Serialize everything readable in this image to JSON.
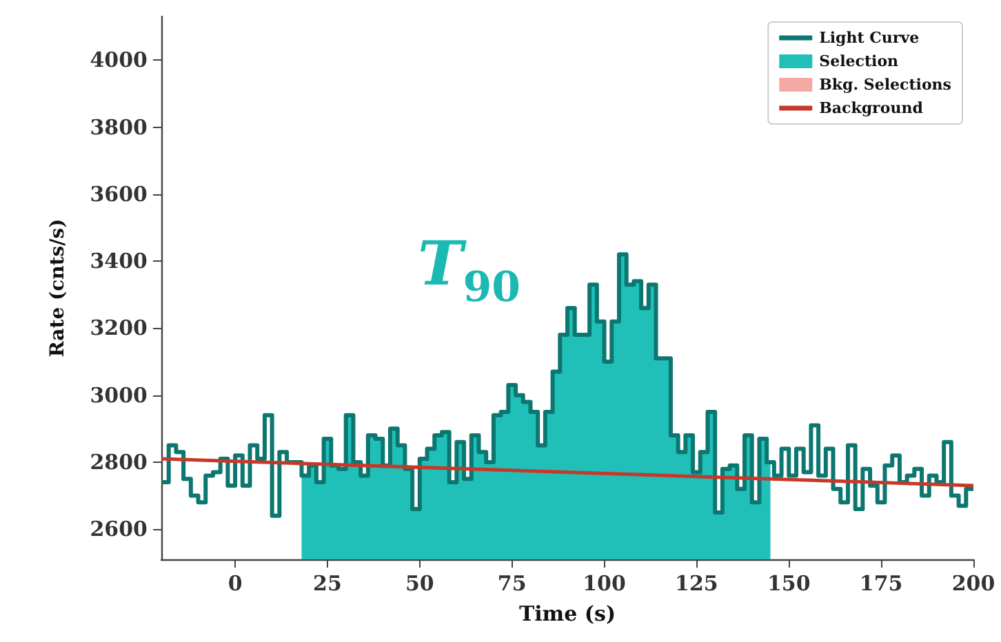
{
  "chart_data": {
    "type": "step",
    "xlabel": "Time (s)",
    "ylabel": "Rate (cnts/s)",
    "xlim": [
      -20,
      200
    ],
    "ylim": [
      2510,
      4130
    ],
    "xticks": [
      0,
      25,
      50,
      75,
      100,
      125,
      150,
      175,
      200
    ],
    "yticks": [
      2600,
      2800,
      3000,
      3200,
      3400,
      3600,
      3800,
      4000
    ],
    "legend": "top right",
    "annotations": [
      "T$_{90}$"
    ],
    "series": [
      {
        "name": "Light Curve",
        "color": "#0c7670",
        "x": [
          -20,
          -18,
          -16,
          -14,
          -12,
          -10,
          -8,
          -6,
          -4,
          -2,
          0,
          2,
          4,
          6,
          8,
          10,
          12,
          14,
          16,
          18,
          20,
          22,
          24,
          26,
          28,
          30,
          32,
          34,
          36,
          38,
          40,
          42,
          44,
          46,
          48,
          50,
          52,
          54,
          56,
          58,
          60,
          62,
          64,
          66,
          68,
          70,
          72,
          74,
          76,
          78,
          80,
          82,
          84,
          86,
          88,
          90,
          92,
          94,
          96,
          98,
          100,
          102,
          104,
          106,
          108,
          110,
          112,
          114,
          116,
          118,
          120,
          122,
          124,
          126,
          128,
          130,
          132,
          134,
          136,
          138,
          140,
          142,
          144,
          146,
          148,
          150,
          152,
          154,
          156,
          158,
          160,
          162,
          164,
          166,
          168,
          170,
          172,
          174,
          176,
          178,
          180,
          182,
          184,
          186,
          188,
          190,
          192,
          194,
          196,
          198,
          200
        ],
        "values": [
          2740,
          2850,
          2830,
          2750,
          2700,
          2680,
          2760,
          2770,
          2810,
          2730,
          2820,
          2730,
          2850,
          2810,
          2940,
          2640,
          2830,
          2800,
          2800,
          2760,
          2790,
          2740,
          2870,
          2790,
          2780,
          2940,
          2800,
          2760,
          2880,
          2870,
          2790,
          2900,
          2850,
          2780,
          2660,
          2810,
          2840,
          2880,
          2890,
          2740,
          2860,
          2750,
          2880,
          2830,
          2800,
          2940,
          2950,
          3030,
          3000,
          2980,
          2950,
          2850,
          2950,
          3070,
          3180,
          3260,
          3180,
          3180,
          3330,
          3220,
          3100,
          3220,
          3420,
          3330,
          3340,
          3260,
          3330,
          3110,
          3110,
          2880,
          2830,
          2880,
          2770,
          2830,
          2950,
          2650,
          2780,
          2790,
          2720,
          2880,
          2680,
          2870,
          2800,
          2760,
          2840,
          2760,
          2840,
          2770,
          2910,
          2760,
          2840,
          2720,
          2680,
          2850,
          2660,
          2780,
          2730,
          2680,
          2790,
          2820,
          2740,
          2760,
          2780,
          2700,
          2760,
          2740,
          2860,
          2700,
          2670,
          2720,
          2720
        ]
      },
      {
        "name": "Selection",
        "type": "area",
        "color": "#20c0b8",
        "x": [
          18,
          20,
          22,
          24,
          26,
          28,
          30,
          32,
          34,
          36,
          38,
          40,
          42,
          44,
          46,
          48,
          50,
          52,
          54,
          56,
          58,
          60,
          62,
          64,
          66,
          68,
          70,
          72,
          74,
          76,
          78,
          80,
          82,
          84,
          86,
          88,
          90,
          92,
          94,
          96,
          98,
          100,
          102,
          104,
          106,
          108,
          110,
          112,
          114,
          116,
          118,
          120,
          122,
          124,
          126,
          128,
          130,
          132,
          134,
          136,
          138,
          140,
          142,
          144,
          145
        ],
        "values": [
          2760,
          2790,
          2740,
          2870,
          2790,
          2780,
          2940,
          2800,
          2760,
          2880,
          2870,
          2790,
          2900,
          2850,
          2780,
          2660,
          2810,
          2840,
          2880,
          2890,
          2740,
          2860,
          2750,
          2880,
          2830,
          2800,
          2940,
          2950,
          3030,
          3000,
          2980,
          2950,
          2850,
          2950,
          3070,
          3180,
          3260,
          3180,
          3180,
          3330,
          3220,
          3100,
          3220,
          3420,
          3330,
          3340,
          3260,
          3330,
          3110,
          3110,
          2880,
          2830,
          2880,
          2770,
          2830,
          2950,
          2650,
          2780,
          2790,
          2720,
          2880,
          2680,
          2870,
          2800,
          2800
        ]
      },
      {
        "name": "Bkg. Selections",
        "type": "area",
        "color": "#f4aaa4"
      },
      {
        "name": "Background",
        "type": "line",
        "color": "#c8382a",
        "x": [
          -20,
          200
        ],
        "values": [
          2810,
          2730
        ]
      }
    ]
  }
}
